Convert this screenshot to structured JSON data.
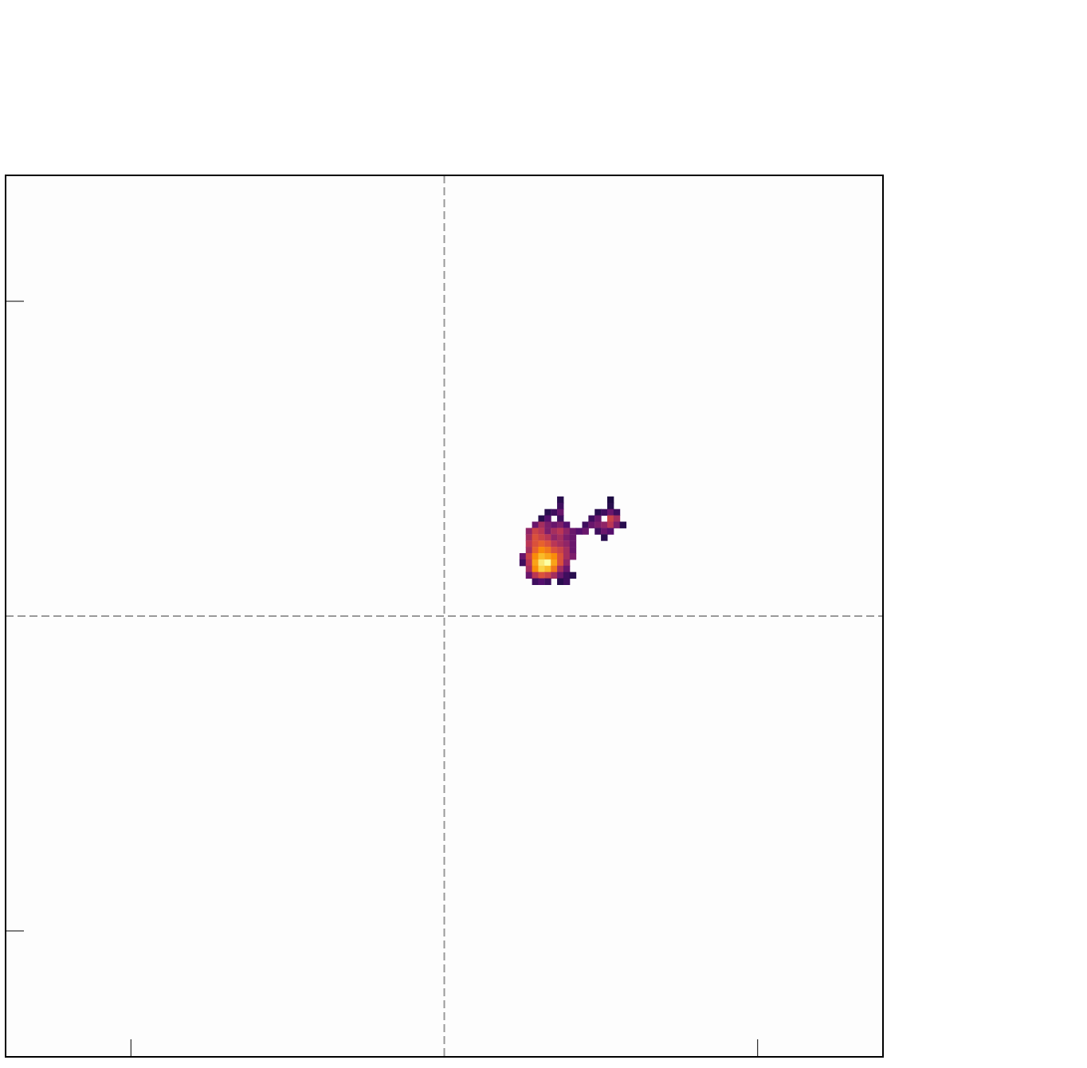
{
  "chart_data": {
    "type": "heatmap",
    "xlim": [
      -1.4,
      1.4
    ],
    "ylim": [
      -1.4,
      1.4
    ],
    "xticks": [
      -1,
      1
    ],
    "yticks": [
      -1,
      1
    ],
    "tick_labels": false,
    "reference_lines": {
      "x": [
        0
      ],
      "y": [
        0
      ]
    },
    "cell_size": 0.02,
    "color_range": [
      0,
      1
    ],
    "cells": [
      [
        0.36,
        0.36,
        0.15
      ],
      [
        0.52,
        0.36,
        0.12
      ],
      [
        0.36,
        0.34,
        0.2
      ],
      [
        0.52,
        0.34,
        0.15
      ],
      [
        0.32,
        0.32,
        0.15
      ],
      [
        0.34,
        0.32,
        0.2
      ],
      [
        0.36,
        0.32,
        0.3
      ],
      [
        0.48,
        0.32,
        0.15
      ],
      [
        0.5,
        0.32,
        0.2
      ],
      [
        0.52,
        0.32,
        0.3
      ],
      [
        0.54,
        0.32,
        0.2
      ],
      [
        0.3,
        0.3,
        0.15
      ],
      [
        0.32,
        0.3,
        0.25
      ],
      [
        0.36,
        0.3,
        0.2
      ],
      [
        0.46,
        0.3,
        0.2
      ],
      [
        0.48,
        0.3,
        0.3
      ],
      [
        0.52,
        0.3,
        0.55
      ],
      [
        0.54,
        0.3,
        0.45
      ],
      [
        0.28,
        0.28,
        0.3
      ],
      [
        0.3,
        0.28,
        0.45
      ],
      [
        0.32,
        0.28,
        0.35
      ],
      [
        0.34,
        0.28,
        0.3
      ],
      [
        0.36,
        0.28,
        0.35
      ],
      [
        0.38,
        0.28,
        0.25
      ],
      [
        0.44,
        0.28,
        0.2
      ],
      [
        0.46,
        0.28,
        0.3
      ],
      [
        0.48,
        0.28,
        0.35
      ],
      [
        0.5,
        0.28,
        0.4
      ],
      [
        0.52,
        0.28,
        0.5
      ],
      [
        0.54,
        0.28,
        0.35
      ],
      [
        0.56,
        0.28,
        0.15
      ],
      [
        0.26,
        0.26,
        0.4
      ],
      [
        0.28,
        0.26,
        0.55
      ],
      [
        0.3,
        0.26,
        0.5
      ],
      [
        0.32,
        0.26,
        0.35
      ],
      [
        0.34,
        0.26,
        0.45
      ],
      [
        0.36,
        0.26,
        0.5
      ],
      [
        0.38,
        0.26,
        0.4
      ],
      [
        0.4,
        0.26,
        0.3
      ],
      [
        0.42,
        0.26,
        0.25
      ],
      [
        0.44,
        0.26,
        0.3
      ],
      [
        0.48,
        0.26,
        0.2
      ],
      [
        0.5,
        0.26,
        0.3
      ],
      [
        0.52,
        0.26,
        0.25
      ],
      [
        0.26,
        0.24,
        0.45
      ],
      [
        0.28,
        0.24,
        0.6
      ],
      [
        0.3,
        0.24,
        0.55
      ],
      [
        0.32,
        0.24,
        0.5
      ],
      [
        0.34,
        0.24,
        0.4
      ],
      [
        0.36,
        0.24,
        0.45
      ],
      [
        0.38,
        0.24,
        0.35
      ],
      [
        0.4,
        0.24,
        0.3
      ],
      [
        0.5,
        0.24,
        0.15
      ],
      [
        0.26,
        0.22,
        0.5
      ],
      [
        0.28,
        0.22,
        0.6
      ],
      [
        0.3,
        0.22,
        0.65
      ],
      [
        0.32,
        0.22,
        0.6
      ],
      [
        0.34,
        0.22,
        0.5
      ],
      [
        0.36,
        0.22,
        0.45
      ],
      [
        0.38,
        0.22,
        0.4
      ],
      [
        0.4,
        0.22,
        0.3
      ],
      [
        0.26,
        0.2,
        0.45
      ],
      [
        0.28,
        0.2,
        0.65
      ],
      [
        0.3,
        0.2,
        0.75
      ],
      [
        0.32,
        0.2,
        0.7
      ],
      [
        0.34,
        0.2,
        0.6
      ],
      [
        0.36,
        0.2,
        0.55
      ],
      [
        0.38,
        0.2,
        0.45
      ],
      [
        0.4,
        0.2,
        0.3
      ],
      [
        0.24,
        0.18,
        0.3
      ],
      [
        0.26,
        0.18,
        0.55
      ],
      [
        0.28,
        0.18,
        0.75
      ],
      [
        0.3,
        0.18,
        0.85
      ],
      [
        0.32,
        0.18,
        0.8
      ],
      [
        0.34,
        0.18,
        0.75
      ],
      [
        0.36,
        0.18,
        0.6
      ],
      [
        0.38,
        0.18,
        0.45
      ],
      [
        0.4,
        0.18,
        0.35
      ],
      [
        0.24,
        0.16,
        0.2
      ],
      [
        0.26,
        0.16,
        0.5
      ],
      [
        0.28,
        0.16,
        0.8
      ],
      [
        0.3,
        0.16,
        0.95
      ],
      [
        0.32,
        0.16,
        1.0
      ],
      [
        0.34,
        0.16,
        0.8
      ],
      [
        0.36,
        0.16,
        0.6
      ],
      [
        0.38,
        0.16,
        0.4
      ],
      [
        0.26,
        0.14,
        0.45
      ],
      [
        0.28,
        0.14,
        0.75
      ],
      [
        0.3,
        0.14,
        0.9
      ],
      [
        0.32,
        0.14,
        0.85
      ],
      [
        0.34,
        0.14,
        0.7
      ],
      [
        0.36,
        0.14,
        0.45
      ],
      [
        0.38,
        0.14,
        0.3
      ],
      [
        0.26,
        0.12,
        0.3
      ],
      [
        0.28,
        0.12,
        0.5
      ],
      [
        0.3,
        0.12,
        0.6
      ],
      [
        0.32,
        0.12,
        0.55
      ],
      [
        0.34,
        0.12,
        0.45
      ],
      [
        0.36,
        0.12,
        0.3
      ],
      [
        0.38,
        0.12,
        0.2
      ],
      [
        0.4,
        0.12,
        0.15
      ],
      [
        0.28,
        0.1,
        0.2
      ],
      [
        0.3,
        0.1,
        0.25
      ],
      [
        0.32,
        0.1,
        0.2
      ],
      [
        0.36,
        0.1,
        0.15
      ],
      [
        0.38,
        0.1,
        0.2
      ]
    ]
  }
}
